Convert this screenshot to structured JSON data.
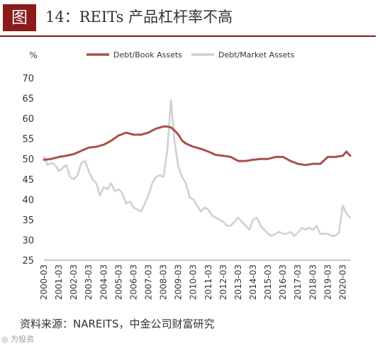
{
  "figure": {
    "label": "图",
    "title": "14：REITs 产品杠杆率不高",
    "source": "资料来源：NAREITS，中金公司财富研究",
    "watermark": "◎ 为投资"
  },
  "chart_data": {
    "type": "line",
    "ylabel": "%",
    "ylim": [
      25,
      70
    ],
    "yticks": [
      25,
      30,
      35,
      40,
      45,
      50,
      55,
      60,
      65,
      70
    ],
    "xlim": [
      2000.0,
      2020.5
    ],
    "categories": [
      "2000-03",
      "2001-03",
      "2002-03",
      "2003-03",
      "2004-03",
      "2005-03",
      "2006-03",
      "2007-03",
      "2008-03",
      "2009-03",
      "2010-03",
      "2011-03",
      "2012-03",
      "2013-03",
      "2014-03",
      "2015-03",
      "2016-03",
      "2017-03",
      "2018-03",
      "2019-03",
      "2020-03"
    ],
    "grid": false,
    "legend_position": "top",
    "series": [
      {
        "name": "Debt/Book Assets",
        "color": "#a8524a",
        "x": [
          2000.0,
          2000.5,
          2001.0,
          2001.5,
          2002.0,
          2002.5,
          2003.0,
          2003.5,
          2004.0,
          2004.5,
          2005.0,
          2005.5,
          2006.0,
          2006.5,
          2007.0,
          2007.5,
          2008.0,
          2008.25,
          2008.5,
          2008.75,
          2009.0,
          2009.25,
          2009.5,
          2010.0,
          2010.5,
          2011.0,
          2011.5,
          2012.0,
          2012.5,
          2013.0,
          2013.5,
          2014.0,
          2014.5,
          2015.0,
          2015.5,
          2016.0,
          2016.5,
          2017.0,
          2017.5,
          2018.0,
          2018.5,
          2019.0,
          2019.5,
          2020.0,
          2020.25,
          2020.5
        ],
        "values": [
          49.8,
          50.0,
          50.5,
          50.8,
          51.2,
          52.0,
          52.8,
          53.0,
          53.5,
          54.5,
          55.8,
          56.5,
          56.0,
          56.0,
          56.5,
          57.5,
          58.0,
          58.0,
          57.8,
          57.0,
          56.0,
          54.5,
          53.8,
          53.0,
          52.5,
          51.8,
          51.0,
          50.8,
          50.5,
          49.5,
          49.5,
          49.8,
          50.0,
          50.0,
          50.5,
          50.5,
          49.5,
          48.8,
          48.5,
          48.8,
          48.8,
          50.5,
          50.5,
          50.8,
          51.8,
          50.8
        ]
      },
      {
        "name": "Debt/Market Assets",
        "color": "#d0d0d0",
        "x": [
          2000.0,
          2000.25,
          2000.5,
          2000.75,
          2001.0,
          2001.25,
          2001.5,
          2001.75,
          2002.0,
          2002.25,
          2002.5,
          2002.75,
          2003.0,
          2003.25,
          2003.5,
          2003.75,
          2004.0,
          2004.25,
          2004.5,
          2004.75,
          2005.0,
          2005.25,
          2005.5,
          2005.75,
          2006.0,
          2006.25,
          2006.5,
          2006.75,
          2007.0,
          2007.25,
          2007.5,
          2007.75,
          2008.0,
          2008.25,
          2008.5,
          2008.75,
          2009.0,
          2009.25,
          2009.5,
          2009.75,
          2010.0,
          2010.25,
          2010.5,
          2010.75,
          2011.0,
          2011.25,
          2011.5,
          2011.75,
          2012.0,
          2012.25,
          2012.5,
          2012.75,
          2013.0,
          2013.25,
          2013.5,
          2013.75,
          2014.0,
          2014.25,
          2014.5,
          2014.75,
          2015.0,
          2015.25,
          2015.5,
          2015.75,
          2016.0,
          2016.25,
          2016.5,
          2016.75,
          2017.0,
          2017.25,
          2017.5,
          2017.75,
          2018.0,
          2018.25,
          2018.5,
          2018.75,
          2019.0,
          2019.25,
          2019.5,
          2019.75,
          2020.0,
          2020.25,
          2020.5
        ],
        "values": [
          50.5,
          48.5,
          49.0,
          48.5,
          47.0,
          47.8,
          48.5,
          45.5,
          45.0,
          46.0,
          49.0,
          49.5,
          47.0,
          45.0,
          44.0,
          41.0,
          43.0,
          42.5,
          44.0,
          42.0,
          42.5,
          41.5,
          39.0,
          39.5,
          38.0,
          37.5,
          37.0,
          39.0,
          41.0,
          44.0,
          45.5,
          46.0,
          45.5,
          52.0,
          64.5,
          54.0,
          48.0,
          45.5,
          44.0,
          40.5,
          40.0,
          38.5,
          37.0,
          38.0,
          37.5,
          36.0,
          35.5,
          35.0,
          34.5,
          33.5,
          33.5,
          34.5,
          35.5,
          34.5,
          33.5,
          32.5,
          35.0,
          35.5,
          33.5,
          32.5,
          31.5,
          31.0,
          31.5,
          32.0,
          31.5,
          31.5,
          32.0,
          31.0,
          31.8,
          33.0,
          32.5,
          33.0,
          32.5,
          33.5,
          31.5,
          31.5,
          31.5,
          31.0,
          31.0,
          31.8,
          38.5,
          36.5,
          35.5
        ]
      }
    ]
  }
}
